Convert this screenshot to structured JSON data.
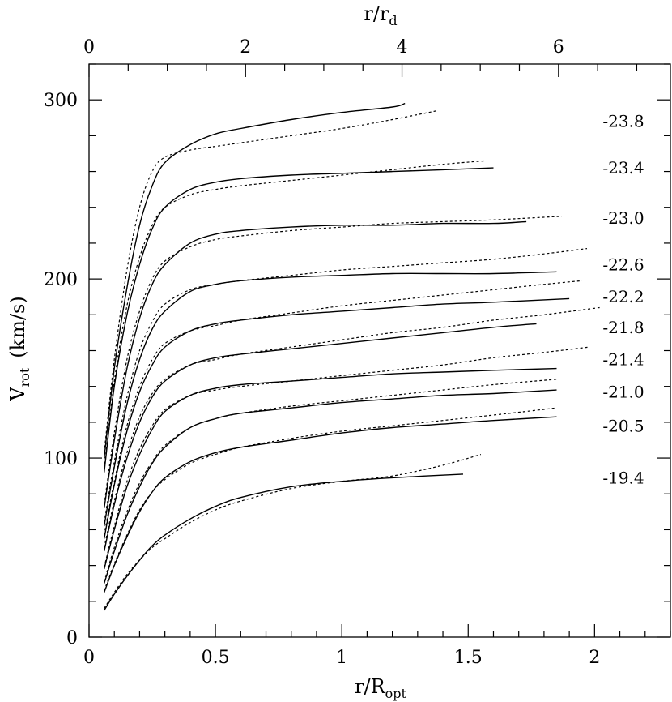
{
  "chart_data": {
    "type": "line",
    "xlabel": "r/R",
    "xlabel_sub": "opt",
    "ylabel": "V",
    "ylabel_sub": "rot",
    "ylabel_unit": "(km/s)",
    "x2label": "r/r",
    "x2label_sub": "d",
    "xlim": [
      0,
      2.3
    ],
    "ylim": [
      0,
      320
    ],
    "x2lim": [
      0,
      7.43
    ],
    "x_ticks": [
      0,
      0.5,
      1,
      1.5,
      2
    ],
    "x_tick_labels": [
      "0",
      "0.5",
      "1",
      "1.5",
      "2"
    ],
    "y_ticks": [
      0,
      100,
      200,
      300
    ],
    "y_tick_labels": [
      "0",
      "100",
      "200",
      "300"
    ],
    "x2_ticks": [
      0,
      2,
      4,
      6
    ],
    "x2_tick_labels": [
      "0",
      "2",
      "4",
      "6"
    ],
    "grid": false,
    "line_styles": {
      "observed": "solid",
      "model": "dotted"
    },
    "series": [
      {
        "name": "-23.8",
        "label_y": 288,
        "observed": {
          "x": [
            0.06,
            0.1,
            0.15,
            0.2,
            0.25,
            0.3,
            0.4,
            0.5,
            0.6,
            0.8,
            1.0,
            1.2,
            1.25
          ],
          "y": [
            100,
            150,
            195,
            230,
            252,
            265,
            275,
            281,
            284,
            289,
            293,
            296,
            298
          ]
        },
        "model": {
          "x": [
            0.06,
            0.1,
            0.15,
            0.2,
            0.25,
            0.3,
            0.4,
            0.5,
            0.6,
            0.8,
            1.0,
            1.2,
            1.38
          ],
          "y": [
            103,
            155,
            205,
            240,
            260,
            268,
            272,
            274,
            276,
            280,
            284,
            289,
            294
          ]
        }
      },
      {
        "name": "-23.4",
        "label_y": 262,
        "observed": {
          "x": [
            0.06,
            0.1,
            0.15,
            0.2,
            0.25,
            0.3,
            0.4,
            0.5,
            0.6,
            0.8,
            1.0,
            1.2,
            1.4,
            1.6
          ],
          "y": [
            92,
            140,
            180,
            208,
            228,
            240,
            250,
            254,
            256,
            258,
            259,
            260,
            261,
            262
          ]
        },
        "model": {
          "x": [
            0.06,
            0.1,
            0.15,
            0.2,
            0.25,
            0.3,
            0.4,
            0.5,
            0.6,
            0.8,
            1.0,
            1.2,
            1.4,
            1.57
          ],
          "y": [
            94,
            143,
            185,
            212,
            230,
            240,
            247,
            250,
            252,
            255,
            258,
            261,
            264,
            266
          ]
        }
      },
      {
        "name": "-23.0",
        "label_y": 234,
        "observed": {
          "x": [
            0.06,
            0.1,
            0.15,
            0.2,
            0.25,
            0.3,
            0.4,
            0.5,
            0.6,
            0.8,
            1.0,
            1.2,
            1.4,
            1.6,
            1.73
          ],
          "y": [
            72,
            110,
            150,
            178,
            197,
            208,
            220,
            225,
            227,
            229,
            230,
            230,
            231,
            231,
            232
          ]
        },
        "model": {
          "x": [
            0.06,
            0.1,
            0.15,
            0.2,
            0.25,
            0.3,
            0.4,
            0.5,
            0.6,
            0.8,
            1.0,
            1.2,
            1.4,
            1.6,
            1.87
          ],
          "y": [
            74,
            114,
            155,
            182,
            200,
            210,
            218,
            222,
            224,
            227,
            229,
            231,
            232,
            233,
            235
          ]
        }
      },
      {
        "name": "-22.6",
        "label_y": 208,
        "observed": {
          "x": [
            0.06,
            0.1,
            0.15,
            0.2,
            0.25,
            0.3,
            0.4,
            0.5,
            0.6,
            0.8,
            1.0,
            1.2,
            1.4,
            1.6,
            1.85
          ],
          "y": [
            62,
            95,
            130,
            155,
            172,
            182,
            193,
            197,
            199,
            201,
            202,
            203,
            203,
            203,
            204
          ]
        },
        "model": {
          "x": [
            0.06,
            0.1,
            0.15,
            0.2,
            0.25,
            0.3,
            0.4,
            0.5,
            0.6,
            0.8,
            1.0,
            1.2,
            1.4,
            1.6,
            1.8,
            1.97
          ],
          "y": [
            64,
            98,
            134,
            160,
            176,
            186,
            194,
            197,
            199,
            202,
            205,
            207,
            209,
            211,
            214,
            217
          ]
        }
      },
      {
        "name": "-22.2",
        "label_y": 190,
        "observed": {
          "x": [
            0.06,
            0.1,
            0.15,
            0.2,
            0.25,
            0.3,
            0.4,
            0.5,
            0.6,
            0.8,
            1.0,
            1.2,
            1.4,
            1.6,
            1.9
          ],
          "y": [
            55,
            85,
            115,
            137,
            152,
            162,
            171,
            175,
            177,
            180,
            182,
            184,
            186,
            187,
            189
          ]
        },
        "model": {
          "x": [
            0.06,
            0.1,
            0.15,
            0.2,
            0.25,
            0.3,
            0.4,
            0.5,
            0.6,
            0.8,
            1.0,
            1.2,
            1.4,
            1.6,
            1.8,
            1.95
          ],
          "y": [
            57,
            87,
            118,
            140,
            155,
            164,
            171,
            174,
            177,
            181,
            185,
            188,
            191,
            194,
            197,
            199
          ]
        }
      },
      {
        "name": "-21.8",
        "label_y": 173,
        "observed": {
          "x": [
            0.06,
            0.1,
            0.15,
            0.2,
            0.25,
            0.3,
            0.4,
            0.5,
            0.6,
            0.8,
            1.0,
            1.2,
            1.4,
            1.6,
            1.77
          ],
          "y": [
            48,
            74,
            100,
            120,
            134,
            143,
            152,
            156,
            158,
            161,
            164,
            167,
            170,
            173,
            175
          ]
        },
        "model": {
          "x": [
            0.06,
            0.1,
            0.15,
            0.2,
            0.25,
            0.3,
            0.4,
            0.5,
            0.6,
            0.8,
            1.0,
            1.2,
            1.4,
            1.6,
            1.8,
            2.02
          ],
          "y": [
            50,
            76,
            103,
            123,
            136,
            144,
            152,
            155,
            158,
            162,
            166,
            170,
            173,
            177,
            180,
            184
          ]
        }
      },
      {
        "name": "-21.4",
        "label_y": 155,
        "observed": {
          "x": [
            0.06,
            0.1,
            0.15,
            0.2,
            0.25,
            0.3,
            0.4,
            0.5,
            0.6,
            0.8,
            1.0,
            1.2,
            1.4,
            1.6,
            1.85
          ],
          "y": [
            38,
            60,
            84,
            102,
            116,
            126,
            135,
            139,
            141,
            143,
            145,
            147,
            148,
            149,
            150
          ]
        },
        "model": {
          "x": [
            0.06,
            0.1,
            0.15,
            0.2,
            0.25,
            0.3,
            0.4,
            0.5,
            0.6,
            0.8,
            1.0,
            1.2,
            1.4,
            1.6,
            1.8,
            1.98
          ],
          "y": [
            39,
            62,
            87,
            105,
            118,
            127,
            135,
            138,
            140,
            143,
            146,
            149,
            152,
            156,
            159,
            162
          ]
        }
      },
      {
        "name": "-21.0",
        "label_y": 137,
        "observed": {
          "x": [
            0.06,
            0.1,
            0.15,
            0.2,
            0.25,
            0.3,
            0.4,
            0.5,
            0.6,
            0.8,
            1.0,
            1.2,
            1.4,
            1.6,
            1.85
          ],
          "y": [
            30,
            48,
            68,
            84,
            97,
            106,
            117,
            122,
            125,
            128,
            131,
            133,
            135,
            136,
            138
          ]
        },
        "model": {
          "x": [
            0.06,
            0.1,
            0.15,
            0.2,
            0.25,
            0.3,
            0.4,
            0.5,
            0.6,
            0.8,
            1.0,
            1.2,
            1.4,
            1.6,
            1.85
          ],
          "y": [
            31,
            50,
            70,
            86,
            98,
            107,
            117,
            122,
            125,
            129,
            132,
            135,
            138,
            141,
            144
          ]
        }
      },
      {
        "name": "-20.5",
        "label_y": 118,
        "observed": {
          "x": [
            0.06,
            0.1,
            0.15,
            0.2,
            0.25,
            0.3,
            0.4,
            0.5,
            0.6,
            0.8,
            1.0,
            1.2,
            1.4,
            1.6,
            1.85
          ],
          "y": [
            25,
            40,
            56,
            70,
            81,
            89,
            98,
            103,
            106,
            110,
            114,
            117,
            119,
            121,
            123
          ]
        },
        "model": {
          "x": [
            0.06,
            0.1,
            0.15,
            0.2,
            0.25,
            0.3,
            0.4,
            0.5,
            0.6,
            0.8,
            1.0,
            1.2,
            1.4,
            1.6,
            1.85
          ],
          "y": [
            26,
            41,
            57,
            71,
            81,
            88,
            97,
            102,
            106,
            111,
            115,
            118,
            121,
            124,
            128
          ]
        }
      },
      {
        "name": "-19.4",
        "label_y": 89,
        "observed": {
          "x": [
            0.06,
            0.1,
            0.15,
            0.2,
            0.25,
            0.3,
            0.4,
            0.5,
            0.6,
            0.8,
            1.0,
            1.2,
            1.48
          ],
          "y": [
            15,
            24,
            34,
            43,
            51,
            57,
            66,
            73,
            78,
            84,
            87,
            89,
            91
          ]
        },
        "model": {
          "x": [
            0.06,
            0.1,
            0.15,
            0.2,
            0.25,
            0.3,
            0.4,
            0.5,
            0.6,
            0.8,
            1.0,
            1.2,
            1.4,
            1.55
          ],
          "y": [
            16,
            25,
            35,
            43,
            50,
            55,
            64,
            71,
            76,
            83,
            87,
            90,
            96,
            102
          ]
        }
      }
    ]
  }
}
